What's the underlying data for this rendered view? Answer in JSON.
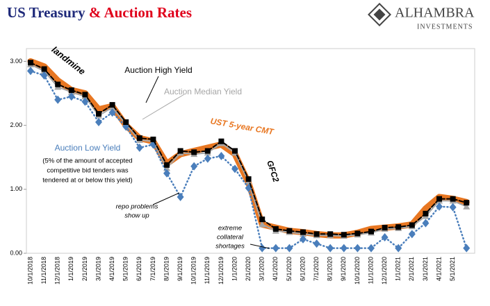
{
  "chart_data": {
    "type": "line",
    "title": [
      "US Treasury",
      "& Auction Rates"
    ],
    "logo": [
      "ALHAMBRA",
      "INVESTMENTS"
    ],
    "categories": [
      "10/1/2018",
      "11/1/2018",
      "12/1/2018",
      "1/1/2019",
      "2/1/2019",
      "3/1/2019",
      "4/1/2019",
      "5/1/2019",
      "6/1/2019",
      "7/1/2019",
      "8/1/2019",
      "9/1/2019",
      "10/1/2019",
      "11/1/2019",
      "12/1/2019",
      "1/1/2020",
      "2/1/2020",
      "3/1/2020",
      "4/1/2020",
      "5/1/2020",
      "6/1/2020",
      "7/1/2020",
      "8/1/2020",
      "9/1/2020",
      "10/1/2020",
      "11/1/2020",
      "12/1/2020",
      "1/1/2021",
      "2/1/2021",
      "3/1/2021",
      "4/1/2021",
      "5/1/2021",
      null
    ],
    "series": [
      {
        "name": "UST 5-year CMT",
        "color": "#e87722",
        "values": [
          3.0,
          2.92,
          2.7,
          2.55,
          2.5,
          2.25,
          2.3,
          2.0,
          1.8,
          1.75,
          1.4,
          1.55,
          1.6,
          1.65,
          1.7,
          1.55,
          1.1,
          0.45,
          0.4,
          0.35,
          0.33,
          0.3,
          0.28,
          0.28,
          0.32,
          0.38,
          0.4,
          0.42,
          0.45,
          0.7,
          0.88,
          0.85,
          0.8
        ]
      },
      {
        "name": "Auction Median Yield",
        "color": "#a6a6a6",
        "values": [
          2.95,
          2.85,
          2.6,
          2.52,
          2.45,
          2.15,
          2.28,
          2.02,
          1.77,
          1.75,
          1.33,
          1.57,
          1.55,
          1.57,
          1.72,
          1.57,
          1.12,
          0.45,
          0.35,
          0.33,
          0.3,
          0.28,
          0.28,
          0.27,
          0.29,
          0.32,
          0.38,
          0.39,
          0.42,
          0.58,
          0.82,
          0.82,
          0.73
        ]
      },
      {
        "name": "Auction Low Yield",
        "color": "#4a7ebb",
        "values": [
          2.85,
          2.78,
          2.4,
          2.45,
          2.37,
          2.05,
          2.2,
          1.98,
          1.65,
          1.7,
          1.25,
          0.88,
          1.36,
          1.48,
          1.52,
          1.32,
          1.02,
          0.08,
          0.08,
          0.08,
          0.22,
          0.15,
          0.08,
          0.08,
          0.08,
          0.08,
          0.25,
          0.08,
          0.3,
          0.47,
          0.73,
          0.72,
          0.08
        ]
      },
      {
        "name": "Auction High Yield",
        "color": "#000000",
        "values": [
          2.98,
          2.88,
          2.64,
          2.55,
          2.48,
          2.18,
          2.32,
          2.05,
          1.8,
          1.78,
          1.38,
          1.6,
          1.58,
          1.6,
          1.75,
          1.6,
          1.16,
          0.53,
          0.38,
          0.35,
          0.33,
          0.3,
          0.3,
          0.29,
          0.31,
          0.34,
          0.4,
          0.41,
          0.44,
          0.62,
          0.85,
          0.85,
          0.79
        ]
      }
    ],
    "ylim": [
      0,
      3.2
    ],
    "yticks": [
      {
        "value": 0,
        "label": "0.00"
      },
      {
        "value": 1,
        "label": "1.00"
      },
      {
        "value": 2,
        "label": "2.00"
      },
      {
        "value": 3,
        "label": "3.00"
      }
    ],
    "annotations": [
      "landmine",
      "Auction High Yield",
      "Auction Median Yield",
      "UST 5-year CMT",
      "Auction Low Yield",
      "(5% of the amount of accepted",
      "competitive bid tenders was",
      "tendered at or below this yield)",
      "GFC2",
      "repo problems",
      "show up",
      "extreme",
      "collateral",
      "shortages"
    ]
  }
}
